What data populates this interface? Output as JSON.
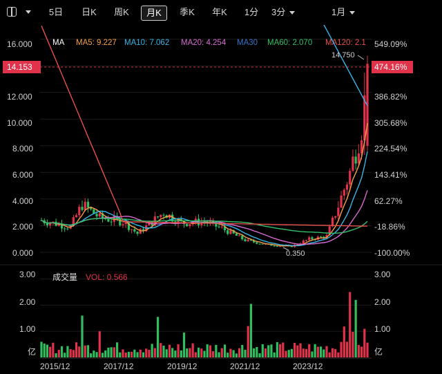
{
  "toolbar": {
    "items": [
      {
        "label": "5日"
      },
      {
        "label": "日K"
      },
      {
        "label": "周K"
      },
      {
        "label": "月K",
        "active": true
      },
      {
        "label": "季K"
      },
      {
        "label": "年K"
      },
      {
        "label": "1分"
      },
      {
        "label": "3分",
        "dropdown": true
      },
      {
        "label": "1月",
        "dropdown": true
      }
    ]
  },
  "colors": {
    "background": "#000000",
    "up": "#e0324a",
    "down": "#2fbf5f",
    "ma5": "#f6a04d",
    "ma10": "#39b6e8",
    "ma20": "#d86ad3",
    "ma30": "#3a74c8",
    "ma60": "#35c06a",
    "ma120": "#e8504a"
  },
  "chart_data": [
    {
      "type": "candlestick",
      "legend": [
        {
          "name": "MA",
          "value": ""
        },
        {
          "name": "MA5",
          "value": "9.227"
        },
        {
          "name": "MA10",
          "value": "7.062"
        },
        {
          "name": "MA20",
          "value": "4.254"
        },
        {
          "name": "MA30",
          "value": ""
        },
        {
          "name": "MA60",
          "value": "2.070"
        },
        {
          "name": "MA120",
          "value": "2.1"
        }
      ],
      "y_ticks": [
        "16.000",
        "14.000",
        "12.000",
        "10.000",
        "8.000",
        "6.000",
        "4.000",
        "2.000",
        "0.000"
      ],
      "pct_ticks": [
        "549.09%",
        "386.82%",
        "305.68%",
        "224.54%",
        "143.41%",
        "62.27%",
        "-18.86%",
        "-100.00%"
      ],
      "ylim": [
        0,
        16.6
      ],
      "current_price": "14.153",
      "current_pct": "474.16%",
      "high_label": "14.750",
      "low_label": "0.350",
      "x_ticks": [
        "2015/12",
        "2017/12",
        "2019/12",
        "2021/12",
        "2023/12"
      ]
    },
    {
      "type": "bar",
      "title": "成交量",
      "indicator": "VOL: 0.566",
      "y_ticks": [
        "3.00",
        "2.00",
        "1.00"
      ],
      "unit": "亿",
      "ylim": [
        0,
        3.2
      ]
    }
  ]
}
